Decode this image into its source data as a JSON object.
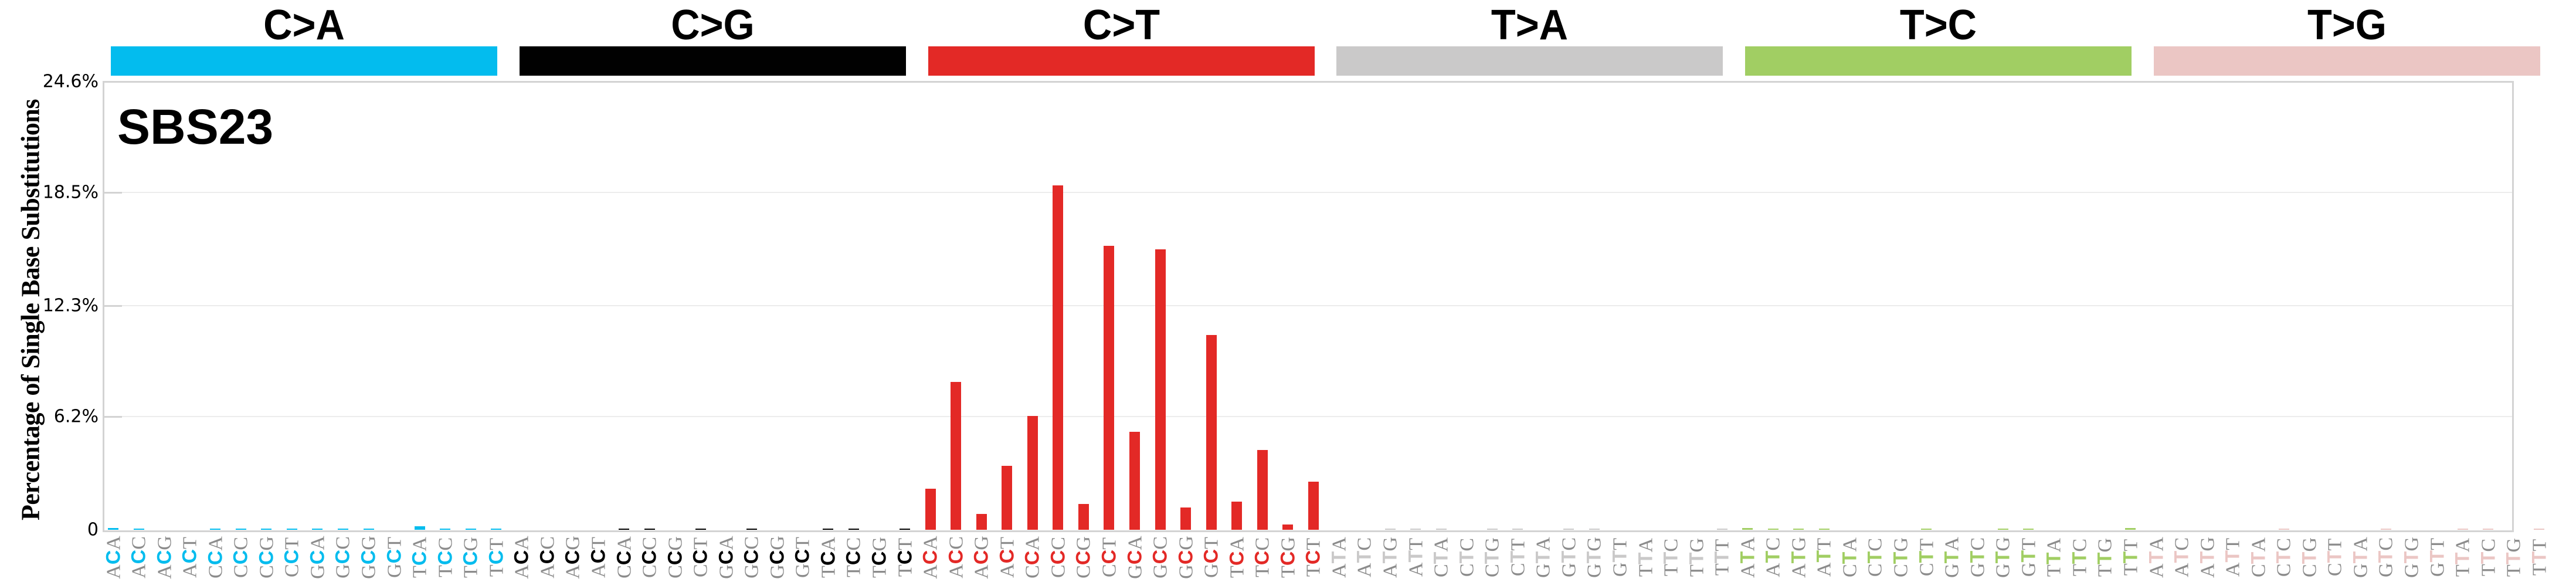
{
  "chart_data": {
    "type": "bar",
    "title": "SBS23",
    "xlabel": "",
    "ylabel": "Percentage of Single Base Substitutions",
    "ylim": [
      0,
      24.6
    ],
    "yticks": [
      "0",
      "6.2%",
      "12.3%",
      "18.5%",
      "24.6%"
    ],
    "ytick_values": [
      0,
      6.2,
      12.3,
      18.5,
      24.6
    ],
    "grid": true,
    "legend": null,
    "groups": [
      {
        "name": "C>A",
        "color": "#03BCEE",
        "label_color": "#03BCEE",
        "contexts": [
          "ACA",
          "ACC",
          "ACG",
          "ACT",
          "CCA",
          "CCC",
          "CCG",
          "CCT",
          "GCA",
          "GCC",
          "GCG",
          "GCT",
          "TCA",
          "TCC",
          "TCG",
          "TCT"
        ],
        "values": [
          0.1,
          0.07,
          0,
          0,
          0.03,
          0.07,
          0.03,
          0.07,
          0.03,
          0.07,
          0.03,
          0,
          0.2,
          0.07,
          0.03,
          0.03
        ]
      },
      {
        "name": "C>G",
        "color": "#010101",
        "label_color": "#010101",
        "contexts": [
          "ACA",
          "ACC",
          "ACG",
          "ACT",
          "CCA",
          "CCC",
          "CCG",
          "CCT",
          "GCA",
          "GCC",
          "GCG",
          "GCT",
          "TCA",
          "TCC",
          "TCG",
          "TCT"
        ],
        "values": [
          0,
          0,
          0,
          0,
          0.03,
          0.03,
          0,
          0.03,
          0,
          0.03,
          0,
          0,
          0.03,
          0.03,
          0,
          0.06
        ]
      },
      {
        "name": "C>T",
        "color": "#E32926",
        "label_color": "#E32926",
        "contexts": [
          "ACA",
          "ACC",
          "ACG",
          "ACT",
          "CCA",
          "CCC",
          "CCG",
          "CCT",
          "GCA",
          "GCC",
          "GCG",
          "GCT",
          "TCA",
          "TCC",
          "TCG",
          "TCT"
        ],
        "values": [
          2.25,
          8.1,
          0.87,
          3.5,
          6.24,
          18.9,
          1.41,
          15.6,
          5.37,
          15.4,
          1.22,
          10.7,
          1.54,
          4.37,
          0.29,
          2.64
        ]
      },
      {
        "name": "T>A",
        "color": "#CAC9C9",
        "label_color": "#CAC9C9",
        "contexts": [
          "ATA",
          "ATC",
          "ATG",
          "ATT",
          "CTA",
          "CTC",
          "CTG",
          "CTT",
          "GTA",
          "GTC",
          "GTG",
          "GTT",
          "TTA",
          "TTC",
          "TTG",
          "TTT"
        ],
        "values": [
          0,
          0,
          0.02,
          0.02,
          0.04,
          0,
          0.02,
          0.02,
          0,
          0.02,
          0.02,
          0,
          0,
          0,
          0,
          0.02
        ]
      },
      {
        "name": "T>C",
        "color": "#A1CE63",
        "label_color": "#A1CE63",
        "contexts": [
          "ATA",
          "ATC",
          "ATG",
          "ATT",
          "CTA",
          "CTC",
          "CTG",
          "CTT",
          "GTA",
          "GTC",
          "GTG",
          "GTT",
          "TTA",
          "TTC",
          "TTG",
          "TTT"
        ],
        "values": [
          0.1,
          0.03,
          0.07,
          0.03,
          0,
          0,
          0,
          0.03,
          0,
          0,
          0.03,
          0.07,
          0,
          0,
          0,
          0.1
        ]
      },
      {
        "name": "T>G",
        "color": "#EBC6C4",
        "label_color": "#EBC6C4",
        "contexts": [
          "ATA",
          "ATC",
          "ATG",
          "ATT",
          "CTA",
          "CTC",
          "CTG",
          "CTT",
          "GTA",
          "GTC",
          "GTG",
          "GTT",
          "TTA",
          "TTC",
          "TTG",
          "TTT"
        ],
        "values": [
          0,
          0,
          0,
          0,
          0,
          0.02,
          0,
          0,
          0,
          0.02,
          0,
          0,
          0.02,
          0.02,
          0,
          0.02
        ]
      }
    ]
  },
  "header": {
    "labels": [
      "C>A",
      "C>G",
      "C>T",
      "T>A",
      "T>C",
      "T>G"
    ]
  },
  "signature_label": "SBS23",
  "axis": {
    "y_title": "Percentage of Single Base Substitutions"
  }
}
